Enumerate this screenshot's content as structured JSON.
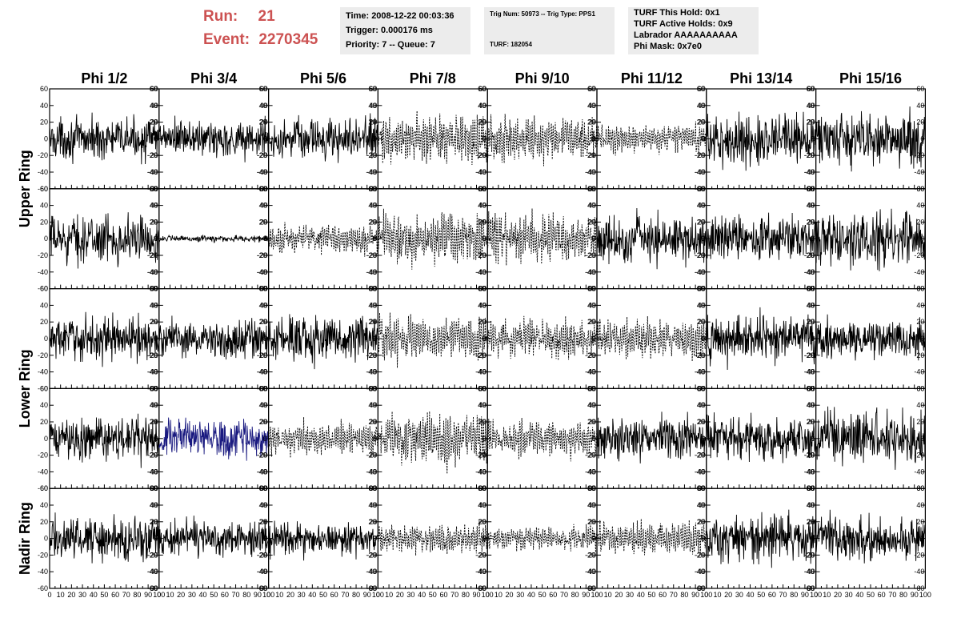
{
  "header": {
    "run_label": "Run:",
    "run_value": "21",
    "event_label": "Event:",
    "event_value": "2270345",
    "time": "Time: 2008-12-22 00:03:36",
    "trigger": "Trigger: 0.000176 ms",
    "priority": "Priority: 7 -- Queue: 7",
    "trig_num": "Trig Num: 50973 -- Trig Type: PPS1",
    "turf": "TURF: 182054",
    "turf_hold": "TURF This Hold: 0x1",
    "turf_active": "TURF Active Holds: 0x9",
    "labrador": "Labrador AAAAAAAAAA",
    "phi_mask": "Phi Mask: 0x7e0"
  },
  "columns": [
    "Phi 1/2",
    "Phi 3/4",
    "Phi 5/6",
    "Phi 7/8",
    "Phi 9/10",
    "Phi 11/12",
    "Phi 13/14",
    "Phi 15/16"
  ],
  "row_labels": [
    {
      "text": "Upper Ring",
      "rows": [
        0,
        1
      ]
    },
    {
      "text": "Lower Ring",
      "rows": [
        2,
        3
      ]
    },
    {
      "text": "Nadir Ring",
      "rows": [
        4,
        4
      ]
    }
  ],
  "colors": {
    "run_text": "#cc5252",
    "info_box": "#ececec",
    "trace": "#000000",
    "highlight_trace": "#1a1a80"
  },
  "chart_data": {
    "type": "line",
    "panel_grid": "5 rows x 8 columns of waveform panels",
    "xlim": [
      0,
      100
    ],
    "ylim": [
      -60,
      60
    ],
    "x_ticks": [
      "0",
      "10",
      "20",
      "30",
      "40",
      "50",
      "60",
      "70",
      "80",
      "90",
      "100"
    ],
    "y_ticks": [
      "60",
      "40",
      "20",
      "0",
      "-20",
      "-40",
      "-60"
    ],
    "grid": false,
    "dashed_panels": [
      [
        0,
        3
      ],
      [
        0,
        4
      ],
      [
        0,
        5
      ],
      [
        1,
        2
      ],
      [
        1,
        3
      ],
      [
        1,
        4
      ],
      [
        2,
        3
      ],
      [
        2,
        4
      ],
      [
        2,
        5
      ],
      [
        3,
        2
      ],
      [
        3,
        3
      ],
      [
        3,
        4
      ],
      [
        4,
        3
      ],
      [
        4,
        4
      ],
      [
        4,
        5
      ]
    ],
    "highlight_panel": [
      3,
      1
    ],
    "panel_amplitude": [
      [
        12,
        12,
        12,
        16,
        15,
        10,
        15,
        17
      ],
      [
        14,
        2,
        10,
        18,
        17,
        14,
        14,
        16
      ],
      [
        13,
        12,
        14,
        15,
        13,
        13,
        14,
        12
      ],
      [
        13,
        11,
        11,
        18,
        12,
        13,
        13,
        16
      ],
      [
        13,
        11,
        10,
        10,
        8,
        11,
        14,
        13
      ]
    ],
    "points_per_trace": 256
  }
}
